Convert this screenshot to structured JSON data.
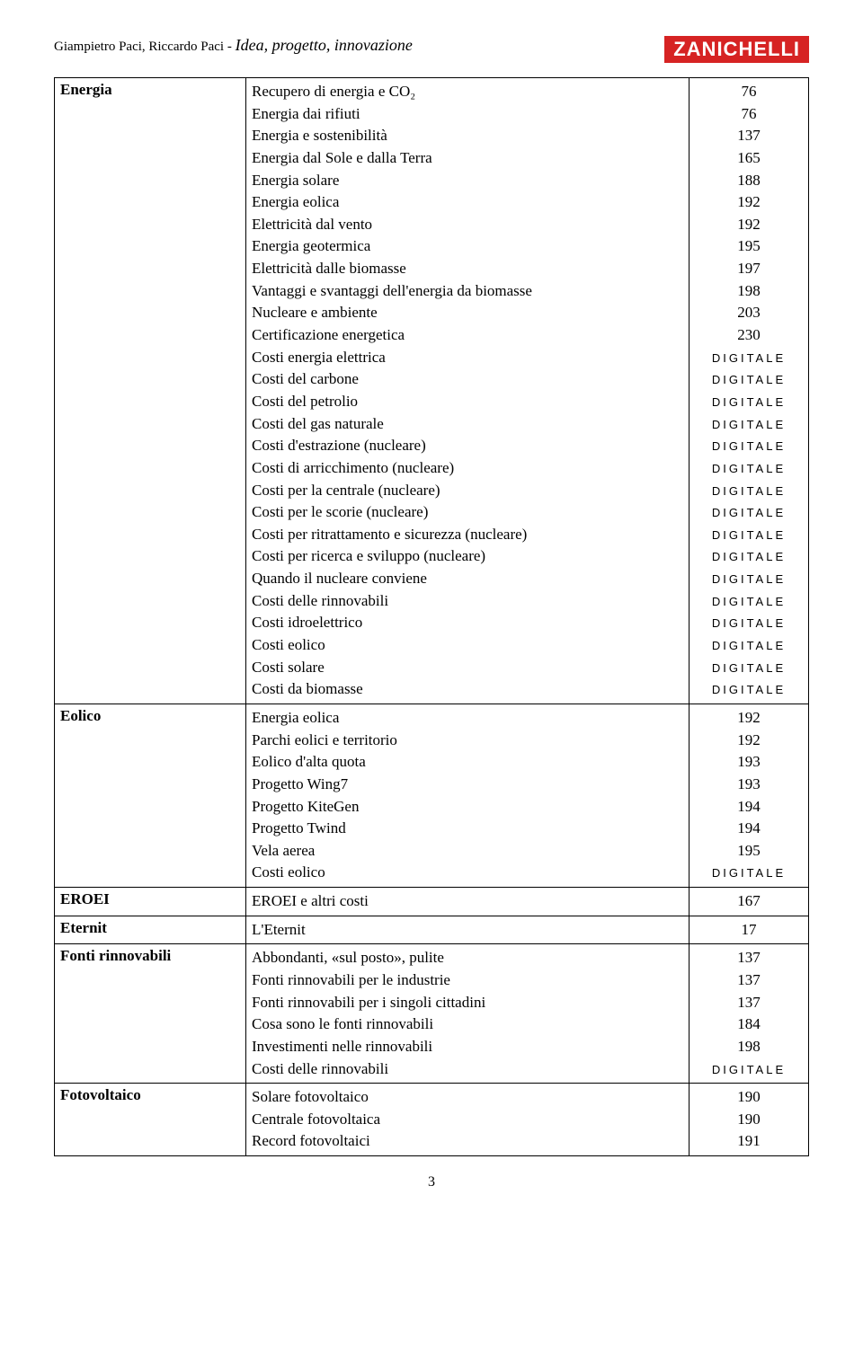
{
  "header": {
    "authors": "Giampietro Paci, Riccardo Paci",
    "separator": "  -  ",
    "book_title": "Idea, progetto, innovazione",
    "publisher": "ZANICHELLI"
  },
  "digitale_label": "DIGITALE",
  "rows": [
    {
      "term": "Energia",
      "items": [
        {
          "desc": "Recupero di energia e CO₂",
          "val": "76"
        },
        {
          "desc": "Energia dai rifiuti",
          "val": "76"
        },
        {
          "desc": "Energia e sostenibilità",
          "val": "137"
        },
        {
          "desc": "Energia dal Sole e dalla Terra",
          "val": "165"
        },
        {
          "desc": "Energia solare",
          "val": "188"
        },
        {
          "desc": "Energia eolica",
          "val": "192"
        },
        {
          "desc": "Elettricità dal vento",
          "val": "192"
        },
        {
          "desc": "Energia geotermica",
          "val": "195"
        },
        {
          "desc": "Elettricità dalle biomasse",
          "val": "197"
        },
        {
          "desc": "Vantaggi e svantaggi dell'energia da biomasse",
          "val": "198"
        },
        {
          "desc": "Nucleare e ambiente",
          "val": "203"
        },
        {
          "desc": "Certificazione energetica",
          "val": "230"
        },
        {
          "desc": "Costi energia elettrica",
          "val": "DIGITALE"
        },
        {
          "desc": "Costi del carbone",
          "val": "DIGITALE"
        },
        {
          "desc": "Costi del petrolio",
          "val": "DIGITALE"
        },
        {
          "desc": "Costi del gas naturale",
          "val": "DIGITALE"
        },
        {
          "desc": "Costi d'estrazione (nucleare)",
          "val": "DIGITALE"
        },
        {
          "desc": "Costi di arricchimento (nucleare)",
          "val": "DIGITALE"
        },
        {
          "desc": "Costi per la centrale (nucleare)",
          "val": "DIGITALE"
        },
        {
          "desc": "Costi per le scorie (nucleare)",
          "val": "DIGITALE"
        },
        {
          "desc": "Costi per ritrattamento e sicurezza (nucleare)",
          "val": "DIGITALE"
        },
        {
          "desc": "Costi per ricerca e sviluppo (nucleare)",
          "val": "DIGITALE"
        },
        {
          "desc": "Quando il nucleare conviene",
          "val": "DIGITALE"
        },
        {
          "desc": "Costi delle rinnovabili",
          "val": "DIGITALE"
        },
        {
          "desc": "Costi idroelettrico",
          "val": "DIGITALE"
        },
        {
          "desc": "Costi eolico",
          "val": "DIGITALE"
        },
        {
          "desc": "Costi solare",
          "val": "DIGITALE"
        },
        {
          "desc": "Costi da biomasse",
          "val": "DIGITALE"
        }
      ]
    },
    {
      "term": "Eolico",
      "items": [
        {
          "desc": "Energia eolica",
          "val": "192"
        },
        {
          "desc": "Parchi eolici e territorio",
          "val": "192"
        },
        {
          "desc": "Eolico d'alta quota",
          "val": "193"
        },
        {
          "desc": "Progetto Wing7",
          "val": "193"
        },
        {
          "desc": "Progetto KiteGen",
          "val": "194"
        },
        {
          "desc": "Progetto Twind",
          "val": "194"
        },
        {
          "desc": "Vela aerea",
          "val": "195"
        },
        {
          "desc": "Costi eolico",
          "val": "DIGITALE"
        }
      ]
    },
    {
      "term": "EROEI",
      "items": [
        {
          "desc": "EROEI e altri costi",
          "val": "167"
        }
      ]
    },
    {
      "term": "Eternit",
      "items": [
        {
          "desc": "L'Eternit",
          "val": "17"
        }
      ]
    },
    {
      "term": "Fonti rinnovabili",
      "items": [
        {
          "desc": "Abbondanti, «sul posto», pulite",
          "val": "137"
        },
        {
          "desc": "Fonti rinnovabili per le industrie",
          "val": "137"
        },
        {
          "desc": "Fonti rinnovabili per i singoli cittadini",
          "val": "137"
        },
        {
          "desc": "Cosa sono le fonti rinnovabili",
          "val": "184"
        },
        {
          "desc": "Investimenti nelle rinnovabili",
          "val": "198"
        },
        {
          "desc": "Costi delle rinnovabili",
          "val": "DIGITALE"
        }
      ]
    },
    {
      "term": "Fotovoltaico",
      "items": [
        {
          "desc": "Solare fotovoltaico",
          "val": "190"
        },
        {
          "desc": "Centrale fotovoltaica",
          "val": "190"
        },
        {
          "desc": "Record fotovoltaici",
          "val": "191"
        }
      ]
    }
  ],
  "page_number": "3"
}
